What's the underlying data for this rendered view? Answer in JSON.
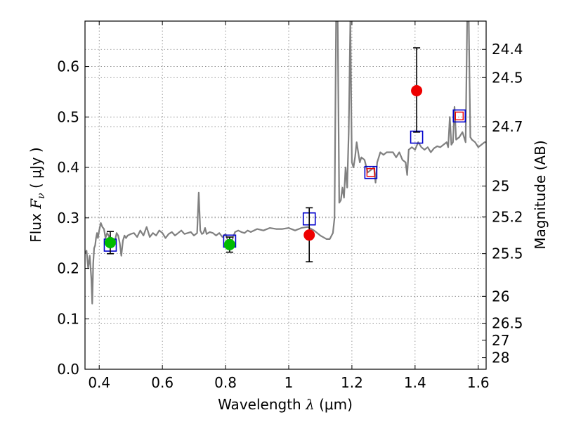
{
  "chart_data": {
    "type": "scatter",
    "title": "",
    "xlabel": "Wavelength  λ (μm)",
    "ylabel": "Flux  F_ν  ( μJy )",
    "ylabel_parts": {
      "prefix": "Flux  ",
      "symbol": "F",
      "subscript": "ν",
      "suffix": "  ( μJy )"
    },
    "xlabel_parts": {
      "prefix": "Wavelength  ",
      "symbol": "λ",
      "suffix": " (μm)"
    },
    "y2label": "Magnitude (AB)",
    "xlim": [
      0.355,
      1.625
    ],
    "ylim": [
      0.0,
      0.69
    ],
    "grid": true,
    "xticks": [
      0.4,
      0.6,
      0.8,
      1.0,
      1.2,
      1.4,
      1.6
    ],
    "xtick_labels": [
      "0.4",
      "0.6",
      "0.8",
      "1",
      "1.2",
      "1.4",
      "1.6"
    ],
    "yticks": [
      0.0,
      0.1,
      0.2,
      0.3,
      0.4,
      0.5,
      0.6
    ],
    "ytick_labels": [
      "0.0",
      "0.1",
      "0.2",
      "0.3",
      "0.4",
      "0.5",
      "0.6"
    ],
    "mag_ticks": [
      {
        "label": "24.4",
        "flux": 0.6339
      },
      {
        "label": "24.5",
        "flux": 0.5781
      },
      {
        "label": "24.7",
        "flux": 0.4808
      },
      {
        "label": "25",
        "flux": 0.3631
      },
      {
        "label": "25.2",
        "flux": 0.302
      },
      {
        "label": "25.5",
        "flux": 0.2291
      },
      {
        "label": "26",
        "flux": 0.1445
      },
      {
        "label": "26.5",
        "flux": 0.0912
      },
      {
        "label": "27",
        "flux": 0.0575
      },
      {
        "label": "28",
        "flux": 0.0229
      }
    ],
    "mag_grid_labels": [
      "24.4",
      "24.5",
      "24.7",
      "25",
      "25.2",
      "25.5",
      "26",
      "26.5"
    ],
    "colors": {
      "spectrum": "#808080",
      "green_points": "#00bb00",
      "red_points": "#ee0000",
      "model_box": "#0000cc",
      "model_box_inner": "#ee0000",
      "errorbar": "#000000",
      "grid": "#808080"
    },
    "spectrum": {
      "name": "model spectrum",
      "x": [
        0.355,
        0.36,
        0.365,
        0.37,
        0.375,
        0.378,
        0.381,
        0.384,
        0.387,
        0.39,
        0.393,
        0.396,
        0.4,
        0.405,
        0.41,
        0.415,
        0.42,
        0.425,
        0.43,
        0.435,
        0.44,
        0.445,
        0.45,
        0.455,
        0.46,
        0.465,
        0.47,
        0.475,
        0.48,
        0.485,
        0.49,
        0.5,
        0.51,
        0.52,
        0.53,
        0.54,
        0.55,
        0.56,
        0.57,
        0.58,
        0.59,
        0.6,
        0.61,
        0.62,
        0.63,
        0.64,
        0.65,
        0.66,
        0.67,
        0.68,
        0.69,
        0.7,
        0.71,
        0.715,
        0.72,
        0.725,
        0.73,
        0.735,
        0.74,
        0.75,
        0.76,
        0.77,
        0.78,
        0.79,
        0.8,
        0.81,
        0.82,
        0.83,
        0.84,
        0.85,
        0.86,
        0.87,
        0.88,
        0.9,
        0.92,
        0.94,
        0.96,
        0.98,
        1.0,
        1.02,
        1.04,
        1.06,
        1.08,
        1.1,
        1.12,
        1.13,
        1.14,
        1.145,
        1.15,
        1.155,
        1.16,
        1.165,
        1.17,
        1.175,
        1.18,
        1.185,
        1.19,
        1.195,
        1.2,
        1.205,
        1.21,
        1.215,
        1.22,
        1.225,
        1.23,
        1.24,
        1.25,
        1.26,
        1.27,
        1.275,
        1.28,
        1.29,
        1.3,
        1.31,
        1.32,
        1.33,
        1.34,
        1.35,
        1.36,
        1.37,
        1.375,
        1.38,
        1.39,
        1.4,
        1.41,
        1.42,
        1.43,
        1.44,
        1.45,
        1.46,
        1.47,
        1.48,
        1.49,
        1.5,
        1.505,
        1.51,
        1.515,
        1.52,
        1.525,
        1.53,
        1.54,
        1.55,
        1.56,
        1.565,
        1.57,
        1.575,
        1.58,
        1.59,
        1.6,
        1.61,
        1.62,
        1.625
      ],
      "y": [
        0.23,
        0.235,
        0.2,
        0.225,
        0.18,
        0.13,
        0.21,
        0.24,
        0.245,
        0.26,
        0.27,
        0.26,
        0.275,
        0.29,
        0.282,
        0.278,
        0.26,
        0.27,
        0.265,
        0.255,
        0.25,
        0.245,
        0.255,
        0.27,
        0.265,
        0.25,
        0.225,
        0.255,
        0.265,
        0.26,
        0.265,
        0.268,
        0.27,
        0.262,
        0.275,
        0.265,
        0.282,
        0.262,
        0.27,
        0.265,
        0.275,
        0.27,
        0.26,
        0.268,
        0.272,
        0.265,
        0.27,
        0.275,
        0.268,
        0.27,
        0.272,
        0.265,
        0.27,
        0.35,
        0.275,
        0.268,
        0.27,
        0.28,
        0.268,
        0.272,
        0.27,
        0.265,
        0.27,
        0.262,
        0.268,
        0.25,
        0.255,
        0.272,
        0.275,
        0.272,
        0.27,
        0.275,
        0.272,
        0.278,
        0.275,
        0.28,
        0.278,
        0.278,
        0.28,
        0.275,
        0.28,
        0.282,
        0.275,
        0.265,
        0.258,
        0.258,
        0.27,
        0.3,
        0.69,
        0.69,
        0.33,
        0.335,
        0.36,
        0.34,
        0.4,
        0.36,
        0.47,
        0.69,
        0.41,
        0.4,
        0.42,
        0.45,
        0.43,
        0.41,
        0.42,
        0.415,
        0.39,
        0.395,
        0.4,
        0.37,
        0.41,
        0.43,
        0.425,
        0.43,
        0.43,
        0.43,
        0.42,
        0.43,
        0.415,
        0.41,
        0.385,
        0.435,
        0.44,
        0.435,
        0.45,
        0.44,
        0.435,
        0.44,
        0.43,
        0.438,
        0.442,
        0.44,
        0.445,
        0.45,
        0.44,
        0.5,
        0.445,
        0.45,
        0.52,
        0.455,
        0.46,
        0.47,
        0.45,
        0.69,
        0.69,
        0.46,
        0.455,
        0.45,
        0.44,
        0.445,
        0.45,
        0.45
      ]
    },
    "series": [
      {
        "name": "green points",
        "marker": "circle",
        "points": [
          {
            "x": 0.435,
            "y": 0.251,
            "yerr": 0.022
          },
          {
            "x": 0.813,
            "y": 0.247,
            "yerr": 0.015
          }
        ]
      },
      {
        "name": "red points",
        "marker": "circle",
        "points": [
          {
            "x": 1.065,
            "y": 0.266,
            "yerr_low": 0.053,
            "yerr_high": 0.054
          },
          {
            "x": 1.405,
            "y": 0.552,
            "yerr_low": 0.082,
            "yerr_high": 0.085
          }
        ]
      },
      {
        "name": "model boxes",
        "marker": "square",
        "points": [
          {
            "x": 0.435,
            "y": 0.246
          },
          {
            "x": 0.813,
            "y": 0.254
          },
          {
            "x": 1.065,
            "y": 0.298
          },
          {
            "x": 1.26,
            "y": 0.39
          },
          {
            "x": 1.405,
            "y": 0.46
          },
          {
            "x": 1.54,
            "y": 0.502
          }
        ]
      },
      {
        "name": "red boxes",
        "marker": "square-inner",
        "points": [
          {
            "x": 1.26,
            "y": 0.39
          },
          {
            "x": 1.54,
            "y": 0.502
          }
        ]
      }
    ]
  }
}
